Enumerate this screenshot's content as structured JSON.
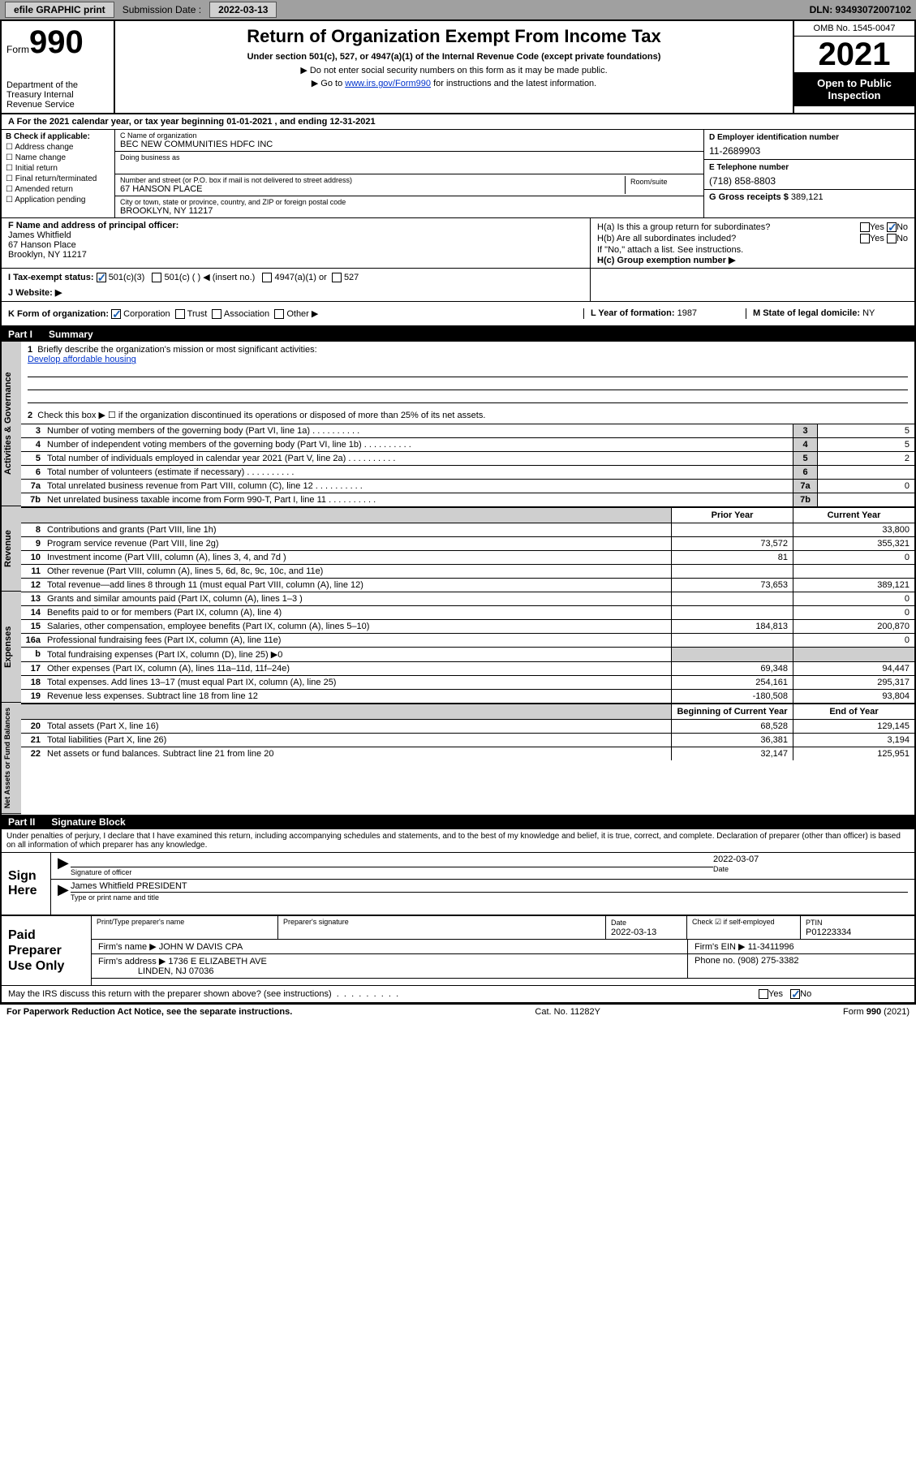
{
  "topbar": {
    "efile": "efile GRAPHIC print",
    "sub_label": "Submission Date :",
    "sub_date": "2022-03-13",
    "dln": "DLN: 93493072007102"
  },
  "header": {
    "form_word": "Form",
    "form_no": "990",
    "dept": "Department of the Treasury\nInternal Revenue Service",
    "title": "Return of Organization Exempt From Income Tax",
    "sub": "Under section 501(c), 527, or 4947(a)(1) of the Internal Revenue Code (except private foundations)",
    "note1": "▶ Do not enter social security numbers on this form as it may be made public.",
    "note2_pre": "▶ Go to ",
    "note2_link": "www.irs.gov/Form990",
    "note2_post": " for instructions and the latest information.",
    "omb": "OMB No. 1545-0047",
    "year": "2021",
    "open": "Open to Public Inspection"
  },
  "rowA": "A For the 2021 calendar year, or tax year beginning 01-01-2021   , and ending 12-31-2021",
  "boxB": {
    "label": "B Check if applicable:",
    "opts": [
      "Address change",
      "Name change",
      "Initial return",
      "Final return/terminated",
      "Amended return",
      "Application pending"
    ]
  },
  "boxC": {
    "name_lbl": "C Name of organization",
    "name": "BEC NEW COMMUNITIES HDFC INC",
    "dba_lbl": "Doing business as",
    "dba": "",
    "addr_lbl": "Number and street (or P.O. box if mail is not delivered to street address)",
    "room_lbl": "Room/suite",
    "addr": "67 HANSON PLACE",
    "city_lbl": "City or town, state or province, country, and ZIP or foreign postal code",
    "city": "BROOKLYN, NY  11217"
  },
  "boxD": {
    "lbl": "D Employer identification number",
    "val": "11-2689903"
  },
  "boxE": {
    "lbl": "E Telephone number",
    "val": "(718) 858-8803"
  },
  "boxG": {
    "lbl": "G Gross receipts $",
    "val": "389,121"
  },
  "boxF": {
    "lbl": "F Name and address of principal officer:",
    "name": "James Whitfield",
    "addr1": "67 Hanson Place",
    "addr2": "Brooklyn, NY  11217"
  },
  "boxH": {
    "a": "H(a)  Is this a group return for subordinates?",
    "b": "H(b)  Are all subordinates included?",
    "note": "If \"No,\" attach a list. See instructions.",
    "c": "H(c)  Group exemption number ▶",
    "yes": "Yes",
    "no": "No"
  },
  "boxI": {
    "lbl": "I   Tax-exempt status:",
    "o1": "501(c)(3)",
    "o2": "501(c) (  ) ◀ (insert no.)",
    "o3": "4947(a)(1) or",
    "o4": "527"
  },
  "boxJ": {
    "lbl": "J   Website: ▶"
  },
  "boxK": {
    "lbl": "K Form of organization:",
    "opts": [
      "Corporation",
      "Trust",
      "Association",
      "Other ▶"
    ]
  },
  "boxL": {
    "lbl": "L Year of formation:",
    "val": "1987"
  },
  "boxM": {
    "lbl": "M State of legal domicile:",
    "val": "NY"
  },
  "partI": {
    "num": "Part I",
    "title": "Summary"
  },
  "gov": {
    "label": "Activities & Governance",
    "l1": "Briefly describe the organization's mission or most significant activities:",
    "l1v": "Develop affordable housing",
    "l2": "Check this box ▶ ☐  if the organization discontinued its operations or disposed of more than 25% of its net assets.",
    "rows": [
      {
        "n": "3",
        "d": "Number of voting members of the governing body (Part VI, line 1a)",
        "v": "5"
      },
      {
        "n": "4",
        "d": "Number of independent voting members of the governing body (Part VI, line 1b)",
        "v": "5"
      },
      {
        "n": "5",
        "d": "Total number of individuals employed in calendar year 2021 (Part V, line 2a)",
        "v": "2"
      },
      {
        "n": "6",
        "d": "Total number of volunteers (estimate if necessary)",
        "v": ""
      },
      {
        "n": "7a",
        "d": "Total unrelated business revenue from Part VIII, column (C), line 12",
        "v": "0"
      },
      {
        "n": "7b",
        "d": "Net unrelated business taxable income from Form 990-T, Part I, line 11",
        "v": ""
      }
    ]
  },
  "rev": {
    "label": "Revenue",
    "h1": "Prior Year",
    "h2": "Current Year",
    "rows": [
      {
        "n": "8",
        "d": "Contributions and grants (Part VIII, line 1h)",
        "c1": "",
        "c2": "33,800"
      },
      {
        "n": "9",
        "d": "Program service revenue (Part VIII, line 2g)",
        "c1": "73,572",
        "c2": "355,321"
      },
      {
        "n": "10",
        "d": "Investment income (Part VIII, column (A), lines 3, 4, and 7d )",
        "c1": "81",
        "c2": "0"
      },
      {
        "n": "11",
        "d": "Other revenue (Part VIII, column (A), lines 5, 6d, 8c, 9c, 10c, and 11e)",
        "c1": "",
        "c2": ""
      },
      {
        "n": "12",
        "d": "Total revenue—add lines 8 through 11 (must equal Part VIII, column (A), line 12)",
        "c1": "73,653",
        "c2": "389,121"
      }
    ]
  },
  "exp": {
    "label": "Expenses",
    "rows": [
      {
        "n": "13",
        "d": "Grants and similar amounts paid (Part IX, column (A), lines 1–3 )",
        "c1": "",
        "c2": "0"
      },
      {
        "n": "14",
        "d": "Benefits paid to or for members (Part IX, column (A), line 4)",
        "c1": "",
        "c2": "0"
      },
      {
        "n": "15",
        "d": "Salaries, other compensation, employee benefits (Part IX, column (A), lines 5–10)",
        "c1": "184,813",
        "c2": "200,870"
      },
      {
        "n": "16a",
        "d": "Professional fundraising fees (Part IX, column (A), line 11e)",
        "c1": "",
        "c2": "0"
      },
      {
        "n": "b",
        "d": "Total fundraising expenses (Part IX, column (D), line 25) ▶0",
        "c1": "grey",
        "c2": "grey"
      },
      {
        "n": "17",
        "d": "Other expenses (Part IX, column (A), lines 11a–11d, 11f–24e)",
        "c1": "69,348",
        "c2": "94,447"
      },
      {
        "n": "18",
        "d": "Total expenses. Add lines 13–17 (must equal Part IX, column (A), line 25)",
        "c1": "254,161",
        "c2": "295,317"
      },
      {
        "n": "19",
        "d": "Revenue less expenses. Subtract line 18 from line 12",
        "c1": "-180,508",
        "c2": "93,804"
      }
    ]
  },
  "net": {
    "label": "Net Assets or Fund Balances",
    "h1": "Beginning of Current Year",
    "h2": "End of Year",
    "rows": [
      {
        "n": "20",
        "d": "Total assets (Part X, line 16)",
        "c1": "68,528",
        "c2": "129,145"
      },
      {
        "n": "21",
        "d": "Total liabilities (Part X, line 26)",
        "c1": "36,381",
        "c2": "3,194"
      },
      {
        "n": "22",
        "d": "Net assets or fund balances. Subtract line 21 from line 20",
        "c1": "32,147",
        "c2": "125,951"
      }
    ]
  },
  "partII": {
    "num": "Part II",
    "title": "Signature Block"
  },
  "sig": {
    "decl": "Under penalties of perjury, I declare that I have examined this return, including accompanying schedules and statements, and to the best of my knowledge and belief, it is true, correct, and complete. Declaration of preparer (other than officer) is based on all information of which preparer has any knowledge.",
    "sign_here": "Sign Here",
    "sig_lbl": "Signature of officer",
    "date_lbl": "Date",
    "date": "2022-03-07",
    "name": "James Whitfield PRESIDENT",
    "name_lbl": "Type or print name and title"
  },
  "paid": {
    "lbl": "Paid Preparer Use Only",
    "h": [
      "Print/Type preparer's name",
      "Preparer's signature",
      "Date",
      "",
      "PTIN"
    ],
    "date": "2022-03-13",
    "check_lbl": "Check ☑ if self-employed",
    "ptin": "P01223334",
    "firm_name_lbl": "Firm's name   ▶",
    "firm_name": "JOHN W DAVIS CPA",
    "firm_ein_lbl": "Firm's EIN ▶",
    "firm_ein": "11-3411996",
    "firm_addr_lbl": "Firm's address ▶",
    "firm_addr1": "1736 E ELIZABETH AVE",
    "firm_addr2": "LINDEN, NJ  07036",
    "phone_lbl": "Phone no.",
    "phone": "(908) 275-3382",
    "discuss": "May the IRS discuss this return with the preparer shown above? (see instructions)",
    "yes": "Yes",
    "no": "No"
  },
  "footer": {
    "left": "For Paperwork Reduction Act Notice, see the separate instructions.",
    "mid": "Cat. No. 11282Y",
    "right": "Form 990 (2021)"
  }
}
